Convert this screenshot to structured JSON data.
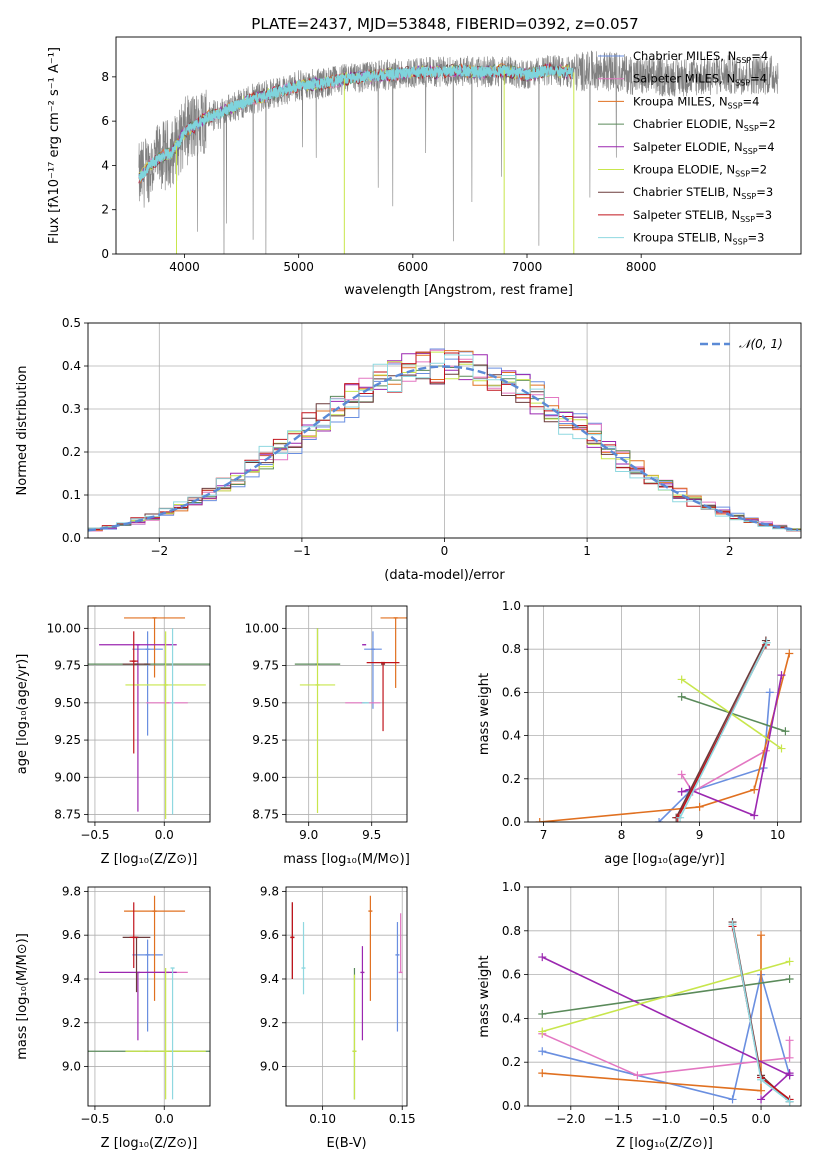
{
  "figure": {
    "title": "PLATE=2437, MJD=53848, FIBERID=0392, z=0.057"
  },
  "legend_models": [
    {
      "label": "Chabrier MILES, N",
      "sub": "SSP",
      "suffix": "=4",
      "color": "#6a8fe0"
    },
    {
      "label": "Salpeter MILES, N",
      "sub": "SSP",
      "suffix": "=4",
      "color": "#e377c2"
    },
    {
      "label": "Kroupa MILES, N",
      "sub": "SSP",
      "suffix": "=4",
      "color": "#e07020"
    },
    {
      "label": "Chabrier ELODIE, N",
      "sub": "SSP",
      "suffix": "=2",
      "color": "#5a8a5a"
    },
    {
      "label": "Salpeter ELODIE, N",
      "sub": "SSP",
      "suffix": "=4",
      "color": "#9b27b0"
    },
    {
      "label": "Kroupa ELODIE, N",
      "sub": "SSP",
      "suffix": "=2",
      "color": "#c8e64c"
    },
    {
      "label": "Chabrier STELIB, N",
      "sub": "SSP",
      "suffix": "=3",
      "color": "#6b3b3b"
    },
    {
      "label": "Salpeter STELIB, N",
      "sub": "SSP",
      "suffix": "=3",
      "color": "#c0141c"
    },
    {
      "label": "Kroupa STELIB, N",
      "sub": "SSP",
      "suffix": "=3",
      "color": "#8fd8e0"
    }
  ],
  "chart_data": [
    {
      "id": "spectrum",
      "type": "line",
      "xlabel": "wavelength [Angstrom, rest frame]",
      "ylabel": "Flux [fλ10⁻¹⁷ erg cm⁻² s⁻¹ A⁻¹]",
      "xlim": [
        3400,
        9400
      ],
      "ylim": [
        0,
        9.8
      ],
      "xticks": [
        4000,
        5000,
        6000,
        7000,
        8000
      ],
      "yticks": [
        0,
        2,
        4,
        6,
        8
      ],
      "data_color": "#808080",
      "series_model": {
        "name": "model",
        "color": "#7fd4dc"
      },
      "data_envelope": {
        "x": [
          3600,
          3700,
          3800,
          3900,
          4000,
          4100,
          4200,
          4300,
          4400,
          4600,
          4800,
          5000,
          5200,
          5400,
          5600,
          5800,
          6000,
          6200,
          6400,
          6600,
          6800,
          7000,
          7200,
          7400,
          7600,
          7800,
          8000,
          8400,
          8800,
          9200
        ],
        "y": [
          3.4,
          4.0,
          4.4,
          4.6,
          5.5,
          5.8,
          6.2,
          6.3,
          6.6,
          7.0,
          7.3,
          7.6,
          7.7,
          7.9,
          8.0,
          8.1,
          8.2,
          8.2,
          8.3,
          8.2,
          8.3,
          8.1,
          8.3,
          8.2,
          8.3,
          8.2,
          8.0,
          8.0,
          8.1,
          8.1
        ]
      }
    },
    {
      "id": "residuals",
      "type": "histogram",
      "xlabel": "(data-model)/error",
      "ylabel": "Normed distribution",
      "xlim": [
        -2.5,
        2.5
      ],
      "ylim": [
        0,
        0.5
      ],
      "xticks": [
        -2,
        -1,
        0,
        1,
        2
      ],
      "yticks": [
        0.0,
        0.1,
        0.2,
        0.3,
        0.4,
        0.5
      ],
      "legend": "𝒩(0, 1)",
      "gaussian": {
        "mean": 0,
        "sigma": 1,
        "color": "#5b8ad6"
      },
      "bin_width": 0.1
    },
    {
      "id": "age_vs_Z",
      "type": "errorbar",
      "xlabel": "Z [log₁₀(Z/Z⊙)]",
      "ylabel": "age  [log₁₀(age/yr)]",
      "xlim": [
        -0.55,
        0.33
      ],
      "ylim": [
        8.7,
        10.15
      ],
      "xticks": [
        -0.5,
        0.0
      ],
      "yticks": [
        8.75,
        9.0,
        9.25,
        9.5,
        9.75,
        10.0
      ],
      "points": [
        {
          "series": "Chabrier MILES",
          "x": -0.12,
          "xerr": 0.11,
          "y": 9.86,
          "yerr": [
            0.58,
            0.12
          ]
        },
        {
          "series": "Salpeter MILES",
          "x": 0.02,
          "xerr": 0.15,
          "y": 9.5,
          "yerr": [
            0.0,
            0.0
          ]
        },
        {
          "series": "Kroupa MILES",
          "x": -0.07,
          "xerr": 0.22,
          "y": 10.07,
          "yerr": [
            0.4,
            0.0
          ]
        },
        {
          "series": "Chabrier ELODIE",
          "x": -0.13,
          "xerr": 0.57,
          "y": 9.76,
          "yerr": [
            0.0,
            0.0
          ]
        },
        {
          "series": "Salpeter ELODIE",
          "x": -0.19,
          "xerr": 0.28,
          "y": 9.89,
          "yerr": [
            1.12,
            0.0
          ]
        },
        {
          "series": "Kroupa ELODIE",
          "x": 0.01,
          "xerr": 0.29,
          "y": 9.62,
          "yerr": [
            0.9,
            0.36
          ]
        },
        {
          "series": "Chabrier STELIB",
          "x": -0.2,
          "xerr": 0.1,
          "y": 9.76,
          "yerr": [
            0.0,
            0.0
          ]
        },
        {
          "series": "Salpeter STELIB",
          "x": -0.22,
          "xerr": 0.03,
          "y": 9.78,
          "yerr": [
            0.62,
            0.2
          ]
        },
        {
          "series": "Kroupa STELIB",
          "x": 0.06,
          "xerr": 0.0,
          "y": 9.5,
          "yerr": [
            0.75,
            0.5
          ]
        }
      ]
    },
    {
      "id": "age_vs_mass",
      "type": "errorbar",
      "xlabel": "mass [log₁₀(M/M⊙)]",
      "ylabel": "",
      "xlim": [
        8.82,
        9.78
      ],
      "ylim": [
        8.7,
        10.15
      ],
      "xticks": [
        9.0,
        9.5
      ],
      "yticks": [
        8.75,
        9.0,
        9.25,
        9.5,
        9.75,
        10.0
      ],
      "points": [
        {
          "series": "Chabrier MILES",
          "x": 9.51,
          "xerr": 0.07,
          "y": 9.86,
          "yerr": [
            0.4,
            0.12
          ]
        },
        {
          "series": "Salpeter MILES",
          "x": 9.43,
          "xerr": 0.14,
          "y": 9.5,
          "yerr": [
            0.0,
            0.0
          ]
        },
        {
          "series": "Kroupa MILES",
          "x": 9.69,
          "xerr": 0.12,
          "y": 10.07,
          "yerr": [
            0.47,
            0.0
          ]
        },
        {
          "series": "Chabrier ELODIE",
          "x": 9.07,
          "xerr": 0.18,
          "y": 9.76,
          "yerr": [
            0.0,
            0.24
          ]
        },
        {
          "series": "Salpeter ELODIE",
          "x": 9.44,
          "xerr": 0.0,
          "y": 9.89,
          "yerr": [
            0.0,
            0.0
          ]
        },
        {
          "series": "Kroupa ELODIE",
          "x": 9.07,
          "xerr": 0.14,
          "y": 9.62,
          "yerr": [
            0.86,
            0.38
          ]
        },
        {
          "series": "Chabrier STELIB",
          "x": 9.59,
          "xerr": 0.0,
          "y": 9.76,
          "yerr": [
            0.0,
            0.0
          ]
        },
        {
          "series": "Salpeter STELIB",
          "x": 9.59,
          "xerr": 0.13,
          "y": 9.77,
          "yerr": [
            0.46,
            0.0
          ]
        },
        {
          "series": "Kroupa STELIB",
          "x": 9.45,
          "xerr": 0.03,
          "y": 9.5,
          "yerr": [
            0.0,
            0.0
          ]
        }
      ]
    },
    {
      "id": "mass_weight_vs_age",
      "type": "line",
      "xlabel": "age  [log₁₀(age/yr)]",
      "ylabel": "mass weight",
      "xlim": [
        6.8,
        10.3
      ],
      "ylim": [
        0,
        1.0
      ],
      "xticks": [
        7,
        8,
        9,
        10
      ],
      "yticks": [
        0.0,
        0.2,
        0.4,
        0.6,
        0.8,
        1.0
      ],
      "series": [
        {
          "name": "Chabrier MILES",
          "x": [
            8.48,
            8.87,
            9.82,
            9.9
          ],
          "y": [
            0.0,
            0.14,
            0.25,
            0.6
          ]
        },
        {
          "name": "Salpeter MILES",
          "x": [
            8.77,
            8.91,
            9.85
          ],
          "y": [
            0.22,
            0.14,
            0.33
          ]
        },
        {
          "name": "Kroupa MILES",
          "x": [
            6.95,
            9.0,
            9.7,
            10.15
          ],
          "y": [
            0.0,
            0.07,
            0.15,
            0.78
          ]
        },
        {
          "name": "Chabrier ELODIE",
          "x": [
            8.77,
            10.1
          ],
          "y": [
            0.58,
            0.42
          ]
        },
        {
          "name": "Salpeter ELODIE",
          "x": [
            8.77,
            8.87,
            9.7,
            10.05
          ],
          "y": [
            0.14,
            0.15,
            0.03,
            0.68
          ]
        },
        {
          "name": "Kroupa ELODIE",
          "x": [
            8.77,
            10.05
          ],
          "y": [
            0.66,
            0.34
          ]
        },
        {
          "name": "Chabrier STELIB",
          "x": [
            8.7,
            9.85
          ],
          "y": [
            0.02,
            0.84
          ]
        },
        {
          "name": "Salpeter STELIB",
          "x": [
            8.72,
            9.85
          ],
          "y": [
            0.02,
            0.82
          ]
        },
        {
          "name": "Kroupa STELIB",
          "x": [
            8.75,
            9.86
          ],
          "y": [
            0.02,
            0.83
          ]
        }
      ]
    },
    {
      "id": "mass_vs_Z",
      "type": "errorbar",
      "xlabel": "Z [log₁₀(Z/Z⊙)]",
      "ylabel": "mass [log₁₀(M/M⊙)]",
      "xlim": [
        -0.55,
        0.33
      ],
      "ylim": [
        8.82,
        9.82
      ],
      "xticks": [
        -0.5,
        0.0
      ],
      "yticks": [
        9.0,
        9.2,
        9.4,
        9.6,
        9.8
      ],
      "points": [
        {
          "series": "Chabrier MILES",
          "x": -0.12,
          "xerr": 0.11,
          "y": 9.51,
          "yerr": [
            0.35,
            0.07
          ]
        },
        {
          "series": "Salpeter MILES",
          "x": 0.02,
          "xerr": 0.15,
          "y": 9.43,
          "yerr": [
            0.0,
            0.0
          ]
        },
        {
          "series": "Kroupa MILES",
          "x": -0.07,
          "xerr": 0.22,
          "y": 9.71,
          "yerr": [
            0.41,
            0.07
          ]
        },
        {
          "series": "Chabrier ELODIE",
          "x": -0.13,
          "xerr": 0.57,
          "y": 9.07,
          "yerr": [
            0.0,
            0.0
          ]
        },
        {
          "series": "Salpeter ELODIE",
          "x": -0.19,
          "xerr": 0.28,
          "y": 9.43,
          "yerr": [
            0.31,
            0.0
          ]
        },
        {
          "series": "Kroupa ELODIE",
          "x": 0.01,
          "xerr": 0.29,
          "y": 9.07,
          "yerr": [
            0.22,
            0.38
          ]
        },
        {
          "series": "Chabrier STELIB",
          "x": -0.2,
          "xerr": 0.1,
          "y": 9.59,
          "yerr": [
            0.25,
            0.0
          ]
        },
        {
          "series": "Salpeter STELIB",
          "x": -0.22,
          "xerr": 0.03,
          "y": 9.59,
          "yerr": [
            0.14,
            0.16
          ]
        },
        {
          "series": "Kroupa STELIB",
          "x": 0.06,
          "xerr": 0.0,
          "y": 9.45,
          "yerr": [
            0.6,
            0.0
          ]
        }
      ]
    },
    {
      "id": "mass_vs_EBV",
      "type": "errorbar",
      "xlabel": "E(B-V)",
      "ylabel": "",
      "xlim": [
        0.077,
        0.153
      ],
      "ylim": [
        8.82,
        9.82
      ],
      "xticks": [
        0.1,
        0.15
      ],
      "yticks": [
        9.0,
        9.2,
        9.4,
        9.6,
        9.8
      ],
      "points": [
        {
          "series": "Chabrier MILES",
          "x": 0.147,
          "y": 9.51,
          "yerr": [
            0.35,
            0.15
          ]
        },
        {
          "series": "Salpeter MILES",
          "x": 0.149,
          "y": 9.43,
          "yerr": [
            0.0,
            0.27
          ]
        },
        {
          "series": "Kroupa MILES",
          "x": 0.13,
          "y": 9.71,
          "yerr": [
            0.41,
            0.07
          ]
        },
        {
          "series": "Chabrier ELODIE",
          "x": 0.12,
          "y": 9.07,
          "yerr": [
            0.22,
            0.38
          ]
        },
        {
          "series": "Salpeter ELODIE",
          "x": 0.125,
          "y": 9.43,
          "yerr": [
            0.31,
            0.12
          ]
        },
        {
          "series": "Kroupa ELODIE",
          "x": 0.12,
          "y": 9.07,
          "yerr": [
            0.22,
            0.35
          ]
        },
        {
          "series": "Chabrier STELIB",
          "x": 0.081,
          "y": 9.59,
          "yerr": [
            0.19,
            0.16
          ]
        },
        {
          "series": "Salpeter STELIB",
          "x": 0.081,
          "y": 9.59,
          "yerr": [
            0.19,
            0.16
          ]
        },
        {
          "series": "Kroupa STELIB",
          "x": 0.088,
          "y": 9.45,
          "yerr": [
            0.12,
            0.21
          ]
        }
      ]
    },
    {
      "id": "mass_weight_vs_Z",
      "type": "line",
      "xlabel": "Z [log₁₀(Z/Z⊙)]",
      "ylabel": "mass weight",
      "xlim": [
        -2.45,
        0.42
      ],
      "ylim": [
        0,
        1.0
      ],
      "xticks": [
        -2.0,
        -1.5,
        -1.0,
        -0.5,
        0.0
      ],
      "yticks": [
        0.0,
        0.2,
        0.4,
        0.6,
        0.8,
        1.0
      ],
      "series": [
        {
          "name": "Chabrier MILES",
          "x": [
            -2.3,
            -0.3,
            0.0,
            0.3
          ],
          "y": [
            0.25,
            0.03,
            0.6,
            0.14
          ]
        },
        {
          "name": "Salpeter MILES",
          "x": [
            -2.3,
            -1.3,
            0.3,
            0.3
          ],
          "y": [
            0.33,
            0.14,
            0.22,
            0.3
          ]
        },
        {
          "name": "Kroupa MILES",
          "x": [
            -2.3,
            0.0,
            0.0
          ],
          "y": [
            0.15,
            0.07,
            0.78
          ]
        },
        {
          "name": "Chabrier ELODIE",
          "x": [
            -2.3,
            0.3
          ],
          "y": [
            0.42,
            0.58
          ]
        },
        {
          "name": "Salpeter ELODIE",
          "x": [
            -2.3,
            0.3,
            0.3,
            0.0
          ],
          "y": [
            0.68,
            0.14,
            0.15,
            0.03
          ]
        },
        {
          "name": "Kroupa ELODIE",
          "x": [
            -2.3,
            0.3
          ],
          "y": [
            0.34,
            0.66
          ]
        },
        {
          "name": "Chabrier STELIB",
          "x": [
            -0.3,
            0.0,
            0.3
          ],
          "y": [
            0.84,
            0.14,
            0.02
          ]
        },
        {
          "name": "Salpeter STELIB",
          "x": [
            -0.3,
            0.0,
            0.3
          ],
          "y": [
            0.82,
            0.13,
            0.03
          ]
        },
        {
          "name": "Kroupa STELIB",
          "x": [
            -0.3,
            0.0,
            0.3
          ],
          "y": [
            0.83,
            0.12,
            0.02
          ]
        }
      ]
    }
  ]
}
